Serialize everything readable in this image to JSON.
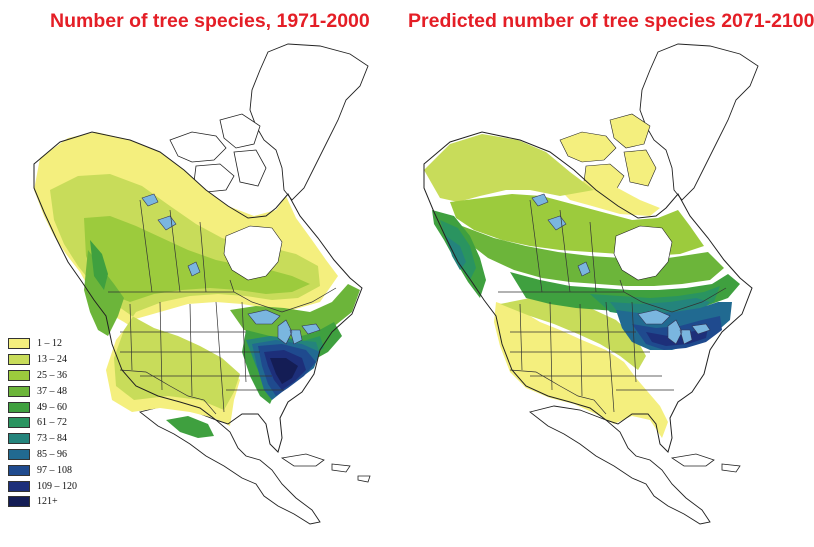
{
  "maps": [
    {
      "title": "Number of tree species, 1971-2000",
      "scenario": "current"
    },
    {
      "title": "Predicted number of tree species 2071-2100",
      "scenario": "future"
    }
  ],
  "legend": {
    "items": [
      {
        "label": "1 – 12",
        "color": "#f4ef7e"
      },
      {
        "label": "13 – 24",
        "color": "#c8dc5a"
      },
      {
        "label": "25 – 36",
        "color": "#9ccb3d"
      },
      {
        "label": "37 – 48",
        "color": "#6cb53a"
      },
      {
        "label": "49 – 60",
        "color": "#3fa03f"
      },
      {
        "label": "61 – 72",
        "color": "#2a9460"
      },
      {
        "label": "73 – 84",
        "color": "#24847c"
      },
      {
        "label": "85 – 96",
        "color": "#216a91"
      },
      {
        "label": "97 – 108",
        "color": "#1f4a8e"
      },
      {
        "label": "109 – 120",
        "color": "#1d2f7a"
      },
      {
        "label": "121+",
        "color": "#141d55"
      }
    ]
  },
  "colors": {
    "title": "#e41e26",
    "water": "#7ab6df",
    "outline": "#222222",
    "no_data": "#ffffff"
  }
}
